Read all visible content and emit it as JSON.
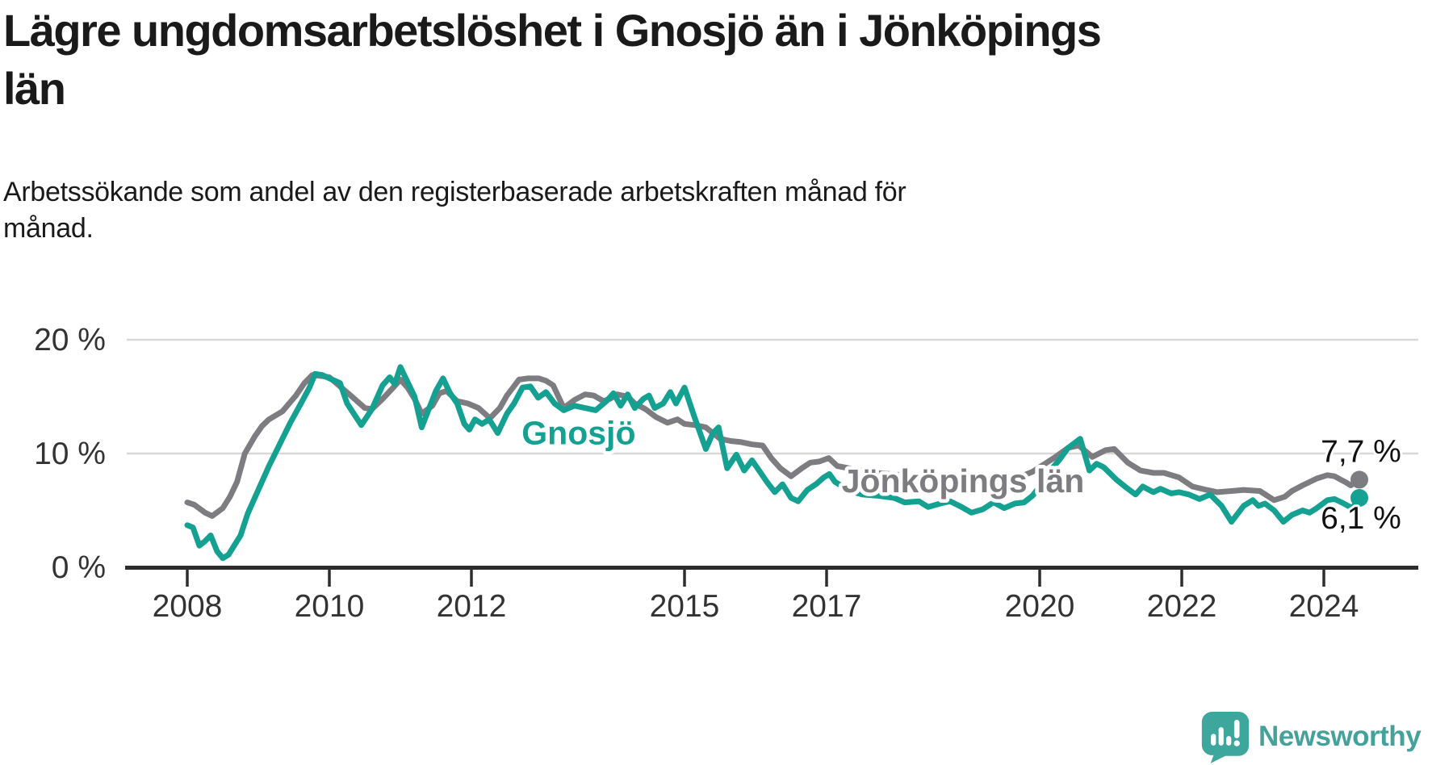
{
  "title": {
    "lines": [
      "Lägre ungdomsarbetslöshet i Gnosjö än i Jönköpings",
      "län"
    ]
  },
  "subtitle": {
    "lines": [
      "Arbetssökande som andel av den registerbaserade arbetskraften månad för",
      "månad."
    ]
  },
  "footer": {
    "brand": "Newsworthy",
    "brand_color": "#45a29b"
  },
  "chart_data": {
    "type": "line",
    "title": "Lägre ungdomsarbetslöshet i Gnosjö än i Jönköpings län",
    "subtitle": "Arbetssökande som andel av den registerbaserade arbetskraften månad för månad.",
    "unit": "%",
    "xlabel": "",
    "ylabel": "",
    "ylim": [
      0,
      20
    ],
    "xlim": [
      2007.15,
      2025.33
    ],
    "grid": "horizontal",
    "legend_position": "inline-labels",
    "colors": {
      "gridline": "#d8d8d8",
      "axis": "#2d2d2d",
      "tick_text": "#333333",
      "value_text": "#111111"
    },
    "yticks": [
      {
        "value": 0,
        "label": "0 %"
      },
      {
        "value": 10,
        "label": "10 %"
      },
      {
        "value": 20,
        "label": "20 %"
      }
    ],
    "xticks": [
      {
        "year": 2008,
        "label": "2008"
      },
      {
        "year": 2010,
        "label": "2010"
      },
      {
        "year": 2012,
        "label": "2012"
      },
      {
        "year": 2015,
        "label": "2015"
      },
      {
        "year": 2017,
        "label": "2017"
      },
      {
        "year": 2020,
        "label": "2020"
      },
      {
        "year": 2022,
        "label": "2022"
      },
      {
        "year": 2024,
        "label": "2024"
      }
    ],
    "series": [
      {
        "name": "Jönköpings län",
        "id": "jonkopings-lan",
        "color": "#7d7d81",
        "end_label": "7,7 %",
        "end_label_side": "above",
        "label_at": {
          "x": 2018.92,
          "y": 7.6
        },
        "points": [
          [
            2008.0,
            5.7
          ],
          [
            2008.1,
            5.5
          ],
          [
            2008.25,
            4.8
          ],
          [
            2008.35,
            4.5
          ],
          [
            2008.5,
            5.2
          ],
          [
            2008.6,
            6.2
          ],
          [
            2008.7,
            7.5
          ],
          [
            2008.81,
            10.0
          ],
          [
            2008.95,
            11.5
          ],
          [
            2009.05,
            12.4
          ],
          [
            2009.15,
            13.0
          ],
          [
            2009.34,
            13.7
          ],
          [
            2009.53,
            15.1
          ],
          [
            2009.65,
            16.2
          ],
          [
            2009.76,
            16.9
          ],
          [
            2009.9,
            16.8
          ],
          [
            2010.0,
            16.7
          ],
          [
            2010.15,
            15.9
          ],
          [
            2010.3,
            15.1
          ],
          [
            2010.5,
            14.0
          ],
          [
            2010.6,
            13.9
          ],
          [
            2010.75,
            14.8
          ],
          [
            2010.9,
            15.8
          ],
          [
            2011.0,
            16.5
          ],
          [
            2011.1,
            15.8
          ],
          [
            2011.2,
            14.8
          ],
          [
            2011.3,
            13.5
          ],
          [
            2011.45,
            14.2
          ],
          [
            2011.55,
            15.3
          ],
          [
            2011.65,
            15.5
          ],
          [
            2011.8,
            14.6
          ],
          [
            2011.95,
            14.4
          ],
          [
            2012.1,
            14.0
          ],
          [
            2012.26,
            13.1
          ],
          [
            2012.4,
            14.0
          ],
          [
            2012.5,
            15.1
          ],
          [
            2012.67,
            16.5
          ],
          [
            2012.8,
            16.6
          ],
          [
            2012.95,
            16.6
          ],
          [
            2013.05,
            16.4
          ],
          [
            2013.15,
            16.0
          ],
          [
            2013.3,
            14.0
          ],
          [
            2013.45,
            14.7
          ],
          [
            2013.6,
            15.2
          ],
          [
            2013.72,
            15.1
          ],
          [
            2013.86,
            14.6
          ],
          [
            2013.95,
            14.8
          ],
          [
            2014.05,
            15.2
          ],
          [
            2014.2,
            15.0
          ],
          [
            2014.3,
            14.4
          ],
          [
            2014.45,
            13.9
          ],
          [
            2014.6,
            13.2
          ],
          [
            2014.76,
            12.7
          ],
          [
            2014.9,
            13.0
          ],
          [
            2015.0,
            12.6
          ],
          [
            2015.15,
            12.5
          ],
          [
            2015.3,
            12.3
          ],
          [
            2015.5,
            11.3
          ],
          [
            2015.65,
            11.1
          ],
          [
            2015.8,
            11.0
          ],
          [
            2015.95,
            10.8
          ],
          [
            2016.1,
            10.7
          ],
          [
            2016.22,
            9.6
          ],
          [
            2016.35,
            8.7
          ],
          [
            2016.5,
            8.0
          ],
          [
            2016.65,
            8.7
          ],
          [
            2016.77,
            9.2
          ],
          [
            2016.9,
            9.3
          ],
          [
            2017.03,
            9.6
          ],
          [
            2017.15,
            8.9
          ],
          [
            2017.4,
            8.6
          ],
          [
            2017.65,
            8.3
          ],
          [
            2017.9,
            8.2
          ],
          [
            2018.2,
            8.0
          ],
          [
            2018.5,
            7.9
          ],
          [
            2018.8,
            7.8
          ],
          [
            2019.1,
            7.7
          ],
          [
            2019.4,
            7.8
          ],
          [
            2019.7,
            7.9
          ],
          [
            2019.9,
            8.4
          ],
          [
            2020.2,
            9.6
          ],
          [
            2020.4,
            10.5
          ],
          [
            2020.55,
            10.7
          ],
          [
            2020.74,
            9.7
          ],
          [
            2020.93,
            10.3
          ],
          [
            2021.05,
            10.4
          ],
          [
            2021.24,
            9.2
          ],
          [
            2021.42,
            8.5
          ],
          [
            2021.6,
            8.3
          ],
          [
            2021.75,
            8.3
          ],
          [
            2021.96,
            7.9
          ],
          [
            2022.15,
            7.1
          ],
          [
            2022.35,
            6.8
          ],
          [
            2022.5,
            6.6
          ],
          [
            2022.7,
            6.7
          ],
          [
            2022.87,
            6.8
          ],
          [
            2023.1,
            6.7
          ],
          [
            2023.3,
            5.9
          ],
          [
            2023.45,
            6.2
          ],
          [
            2023.55,
            6.7
          ],
          [
            2023.7,
            7.2
          ],
          [
            2023.9,
            7.8
          ],
          [
            2024.05,
            8.1
          ],
          [
            2024.15,
            8.0
          ],
          [
            2024.3,
            7.5
          ],
          [
            2024.38,
            7.2
          ],
          [
            2024.5,
            7.7
          ]
        ]
      },
      {
        "name": "Gnosjö",
        "id": "gnosjo",
        "color": "#14a191",
        "end_label": "6,1 %",
        "end_label_side": "below",
        "label_at": {
          "x": 2013.51,
          "y": 11.8
        },
        "points": [
          [
            2008.0,
            3.7
          ],
          [
            2008.08,
            3.5
          ],
          [
            2008.17,
            1.9
          ],
          [
            2008.25,
            2.3
          ],
          [
            2008.33,
            2.8
          ],
          [
            2008.42,
            1.4
          ],
          [
            2008.5,
            0.8
          ],
          [
            2008.58,
            1.1
          ],
          [
            2008.67,
            2.0
          ],
          [
            2008.75,
            2.8
          ],
          [
            2008.85,
            4.7
          ],
          [
            2009.0,
            6.8
          ],
          [
            2009.15,
            8.9
          ],
          [
            2009.3,
            10.8
          ],
          [
            2009.45,
            12.7
          ],
          [
            2009.6,
            14.4
          ],
          [
            2009.72,
            15.8
          ],
          [
            2009.8,
            17.0
          ],
          [
            2009.9,
            16.9
          ],
          [
            2010.0,
            16.6
          ],
          [
            2010.15,
            16.2
          ],
          [
            2010.25,
            14.4
          ],
          [
            2010.45,
            12.5
          ],
          [
            2010.6,
            13.9
          ],
          [
            2010.75,
            16.0
          ],
          [
            2010.85,
            16.7
          ],
          [
            2010.92,
            16.1
          ],
          [
            2011.0,
            17.6
          ],
          [
            2011.1,
            16.3
          ],
          [
            2011.2,
            15.0
          ],
          [
            2011.3,
            12.3
          ],
          [
            2011.4,
            13.9
          ],
          [
            2011.5,
            15.5
          ],
          [
            2011.6,
            16.6
          ],
          [
            2011.7,
            15.3
          ],
          [
            2011.8,
            14.4
          ],
          [
            2011.9,
            12.6
          ],
          [
            2011.97,
            12.1
          ],
          [
            2012.05,
            13.0
          ],
          [
            2012.15,
            12.6
          ],
          [
            2012.25,
            13.0
          ],
          [
            2012.37,
            11.8
          ],
          [
            2012.5,
            13.5
          ],
          [
            2012.6,
            14.4
          ],
          [
            2012.72,
            15.8
          ],
          [
            2012.83,
            15.9
          ],
          [
            2012.94,
            14.9
          ],
          [
            2013.05,
            15.4
          ],
          [
            2013.17,
            14.4
          ],
          [
            2013.3,
            13.8
          ],
          [
            2013.45,
            14.2
          ],
          [
            2013.6,
            14.0
          ],
          [
            2013.75,
            13.8
          ],
          [
            2013.9,
            14.6
          ],
          [
            2014.0,
            15.3
          ],
          [
            2014.1,
            14.2
          ],
          [
            2014.2,
            15.2
          ],
          [
            2014.3,
            14.0
          ],
          [
            2014.42,
            14.8
          ],
          [
            2014.5,
            15.1
          ],
          [
            2014.58,
            14.0
          ],
          [
            2014.7,
            14.4
          ],
          [
            2014.8,
            15.4
          ],
          [
            2014.88,
            14.4
          ],
          [
            2015.0,
            15.8
          ],
          [
            2015.14,
            13.2
          ],
          [
            2015.3,
            10.4
          ],
          [
            2015.4,
            11.8
          ],
          [
            2015.48,
            12.3
          ],
          [
            2015.6,
            8.7
          ],
          [
            2015.73,
            9.9
          ],
          [
            2015.84,
            8.5
          ],
          [
            2015.95,
            9.4
          ],
          [
            2016.05,
            8.5
          ],
          [
            2016.16,
            7.5
          ],
          [
            2016.27,
            6.6
          ],
          [
            2016.38,
            7.3
          ],
          [
            2016.5,
            6.1
          ],
          [
            2016.6,
            5.8
          ],
          [
            2016.73,
            6.8
          ],
          [
            2016.85,
            7.3
          ],
          [
            2016.96,
            7.9
          ],
          [
            2017.04,
            8.2
          ],
          [
            2017.12,
            7.5
          ],
          [
            2017.33,
            6.7
          ],
          [
            2017.5,
            6.4
          ],
          [
            2017.7,
            6.3
          ],
          [
            2017.95,
            6.1
          ],
          [
            2018.1,
            5.7
          ],
          [
            2018.3,
            5.8
          ],
          [
            2018.43,
            5.3
          ],
          [
            2018.6,
            5.6
          ],
          [
            2018.74,
            5.8
          ],
          [
            2018.9,
            5.3
          ],
          [
            2019.04,
            4.8
          ],
          [
            2019.2,
            5.1
          ],
          [
            2019.35,
            5.7
          ],
          [
            2019.5,
            5.2
          ],
          [
            2019.65,
            5.6
          ],
          [
            2019.78,
            5.7
          ],
          [
            2019.9,
            6.3
          ],
          [
            2020.05,
            7.5
          ],
          [
            2020.15,
            8.5
          ],
          [
            2020.27,
            9.4
          ],
          [
            2020.4,
            10.5
          ],
          [
            2020.57,
            11.3
          ],
          [
            2020.7,
            8.5
          ],
          [
            2020.8,
            9.1
          ],
          [
            2020.9,
            8.8
          ],
          [
            2021.08,
            7.7
          ],
          [
            2021.2,
            7.1
          ],
          [
            2021.35,
            6.4
          ],
          [
            2021.45,
            7.1
          ],
          [
            2021.6,
            6.6
          ],
          [
            2021.7,
            6.9
          ],
          [
            2021.85,
            6.5
          ],
          [
            2021.96,
            6.6
          ],
          [
            2022.1,
            6.4
          ],
          [
            2022.25,
            6.0
          ],
          [
            2022.4,
            6.4
          ],
          [
            2022.56,
            5.4
          ],
          [
            2022.7,
            4.0
          ],
          [
            2022.87,
            5.4
          ],
          [
            2023.0,
            5.9
          ],
          [
            2023.08,
            5.4
          ],
          [
            2023.17,
            5.6
          ],
          [
            2023.3,
            5.0
          ],
          [
            2023.43,
            4.0
          ],
          [
            2023.55,
            4.6
          ],
          [
            2023.7,
            5.0
          ],
          [
            2023.8,
            4.8
          ],
          [
            2023.9,
            5.2
          ],
          [
            2024.05,
            5.9
          ],
          [
            2024.15,
            6.0
          ],
          [
            2024.25,
            5.7
          ],
          [
            2024.4,
            5.2
          ],
          [
            2024.5,
            6.1
          ]
        ]
      }
    ]
  }
}
